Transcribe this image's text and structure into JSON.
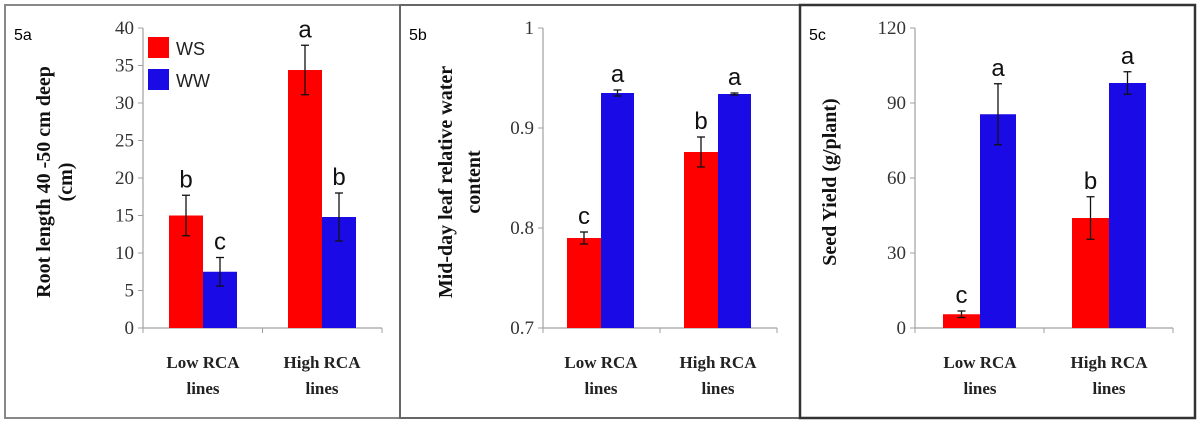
{
  "colors": {
    "WS": "#ff0000",
    "WW": "#1a0ae6",
    "axis": "#a0a0a0",
    "border": "#888888"
  },
  "legend": [
    {
      "name": "WS",
      "color": "#ff0000"
    },
    {
      "name": "WW",
      "color": "#1a0ae6"
    }
  ],
  "chart_data": [
    {
      "panel": "5a",
      "type": "bar",
      "ylabel_lines": [
        "Root length 40 -50 cm deep",
        "(cm)"
      ],
      "ylim": [
        0,
        40
      ],
      "yticks": [
        "0",
        "5",
        "10",
        "15",
        "20",
        "25",
        "30",
        "35",
        "40"
      ],
      "categories": [
        [
          "Low RCA",
          "lines"
        ],
        [
          "High RCA",
          "lines"
        ]
      ],
      "series": [
        {
          "name": "WS",
          "values": [
            15.0,
            34.4
          ],
          "errors": [
            2.7,
            3.3
          ],
          "letters": [
            "b",
            "a"
          ]
        },
        {
          "name": "WW",
          "values": [
            7.5,
            14.8
          ],
          "errors": [
            1.9,
            3.2
          ],
          "letters": [
            "c",
            "b"
          ]
        }
      ],
      "legend": "top-left"
    },
    {
      "panel": "5b",
      "type": "bar",
      "ylabel_lines": [
        "Mid-day leaf relative water",
        "content"
      ],
      "ylim": [
        0.7,
        1.0
      ],
      "yticks": [
        "0.7",
        "0.8",
        "0.9",
        "1"
      ],
      "categories": [
        [
          "Low RCA",
          "lines"
        ],
        [
          "High RCA",
          "lines"
        ]
      ],
      "series": [
        {
          "name": "WS",
          "values": [
            0.79,
            0.876
          ],
          "errors": [
            0.006,
            0.015
          ],
          "letters": [
            "c",
            "b"
          ]
        },
        {
          "name": "WW",
          "values": [
            0.935,
            0.934
          ],
          "errors": [
            0.003,
            0.001
          ],
          "letters": [
            "a",
            "a"
          ]
        }
      ]
    },
    {
      "panel": "5c",
      "type": "bar",
      "ylabel_lines": [
        "Seed Yield (g/plant)"
      ],
      "ylim": [
        0,
        120
      ],
      "yticks": [
        "0",
        "30",
        "60",
        "90",
        "120"
      ],
      "categories": [
        [
          "Low RCA",
          "lines"
        ],
        [
          "High RCA",
          "lines"
        ]
      ],
      "series": [
        {
          "name": "WS",
          "values": [
            5.5,
            44.0
          ],
          "errors": [
            1.3,
            8.5
          ],
          "letters": [
            "c",
            "b"
          ]
        },
        {
          "name": "WW",
          "values": [
            85.5,
            98.0
          ],
          "errors": [
            12.2,
            4.5
          ],
          "letters": [
            "a",
            "a"
          ]
        }
      ]
    }
  ]
}
